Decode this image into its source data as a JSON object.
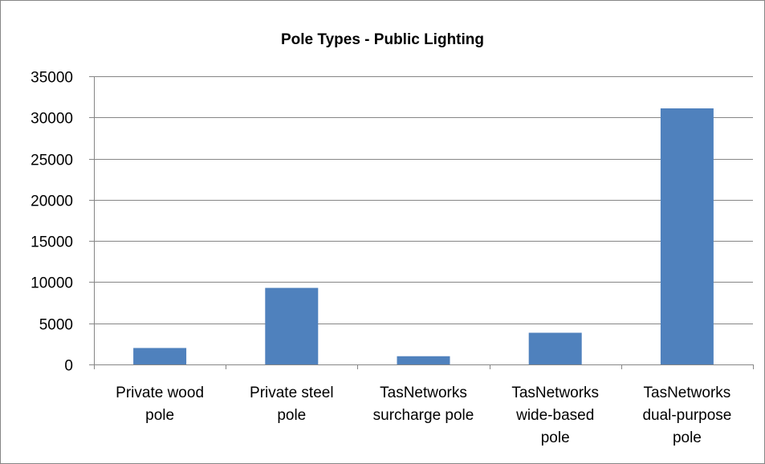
{
  "chart_data": {
    "type": "bar",
    "title": "Pole Types - Public Lighting",
    "categories": [
      [
        "Private wood",
        "pole"
      ],
      [
        "Private steel",
        "pole"
      ],
      [
        "TasNetworks",
        "surcharge pole"
      ],
      [
        "TasNetworks",
        "wide-based",
        "pole"
      ],
      [
        "TasNetworks",
        "dual-purpose",
        "pole"
      ]
    ],
    "series": [
      {
        "values": [
          2000,
          9300,
          1000,
          3850,
          31100
        ],
        "color": "#4F81BD"
      }
    ],
    "ylim": [
      0,
      35000
    ],
    "yticks": [
      0,
      5000,
      10000,
      15000,
      20000,
      25000,
      30000,
      35000
    ],
    "grid": true,
    "legend": "none",
    "xlabel": "",
    "ylabel": ""
  }
}
